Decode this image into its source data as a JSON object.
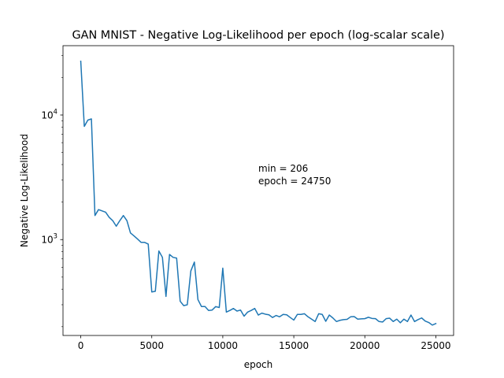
{
  "chart_data": {
    "type": "line",
    "title": "GAN MNIST - Negative Log-Likelihood per epoch (log-scalar scale)",
    "xlabel": "epoch",
    "ylabel": "Negative Log-Likelihood",
    "xlim": [
      -1250,
      26250
    ],
    "ylim": [
      170,
      36000
    ],
    "yscale": "log",
    "grid": false,
    "line_color": "#1f77b4",
    "x_ticks": [
      0,
      5000,
      10000,
      15000,
      20000,
      25000
    ],
    "x_tick_labels": [
      "0",
      "5000",
      "10000",
      "15000",
      "20000",
      "25000"
    ],
    "y_ticks": [
      1000,
      10000
    ],
    "y_tick_labels": [
      {
        "base": "10",
        "exp": "3"
      },
      {
        "base": "10",
        "exp": "4"
      }
    ],
    "annotation": {
      "line1": "min = 206",
      "line2": "epoch = 24750",
      "x": 12500,
      "y": 3500
    },
    "series": [
      {
        "x": [
          0,
          250,
          500,
          750,
          1000,
          1250,
          1500,
          1750,
          2000,
          2250,
          2500,
          2750,
          3000,
          3250,
          3500,
          3750,
          4000,
          4250,
          4500,
          4750,
          5000,
          5250,
          5500,
          5750,
          6000,
          6250,
          6500,
          6750,
          7000,
          7250,
          7500,
          7750,
          8000,
          8250,
          8500,
          8750,
          9000,
          9250,
          9500,
          9750,
          10000,
          10250,
          10500,
          10750,
          11000,
          11250,
          11500,
          11750,
          12000,
          12250,
          12500,
          12750,
          13000,
          13250,
          13500,
          13750,
          14000,
          14250,
          14500,
          14750,
          15000,
          15250,
          15500,
          15750,
          16000,
          16250,
          16500,
          16750,
          17000,
          17250,
          17500,
          17750,
          18000,
          18250,
          18500,
          18750,
          19000,
          19250,
          19500,
          19750,
          20000,
          20250,
          20500,
          20750,
          21000,
          21250,
          21500,
          21750,
          22000,
          22250,
          22500,
          22750,
          23000,
          23250,
          23500,
          23750,
          24000,
          24250,
          24500,
          24750,
          25000
        ],
        "y": [
          27000,
          8100,
          9100,
          9300,
          1560,
          1740,
          1700,
          1660,
          1510,
          1420,
          1280,
          1420,
          1560,
          1420,
          1130,
          1070,
          1010,
          950,
          950,
          920,
          380,
          385,
          810,
          720,
          350,
          760,
          720,
          710,
          320,
          295,
          300,
          560,
          660,
          330,
          290,
          290,
          270,
          272,
          290,
          285,
          590,
          262,
          270,
          280,
          267,
          272,
          243,
          262,
          270,
          280,
          248,
          257,
          252,
          249,
          237,
          246,
          240,
          251,
          249,
          237,
          226,
          251,
          251,
          254,
          240,
          230,
          220,
          254,
          251,
          221,
          248,
          235,
          220,
          225,
          228,
          229,
          240,
          241,
          230,
          231,
          232,
          238,
          233,
          232,
          220,
          218,
          232,
          234,
          220,
          230,
          215,
          230,
          220,
          248,
          220,
          228,
          235,
          222,
          216,
          206,
          212
        ]
      }
    ]
  }
}
